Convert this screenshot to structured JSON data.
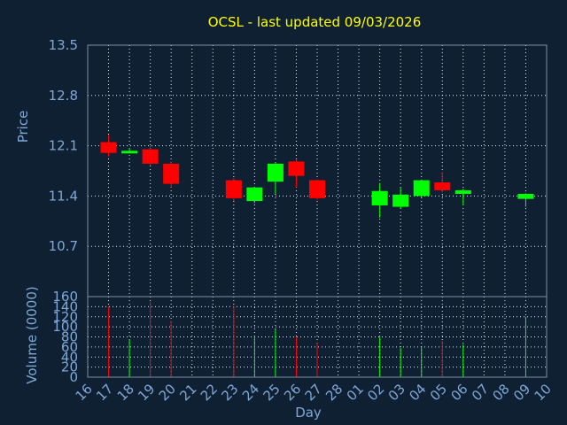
{
  "chart_data": [
    {
      "type": "candlestick",
      "title": "OCSL - last updated 09/03/2026",
      "ylabel": "Price",
      "ylim": [
        10.0,
        13.5
      ],
      "yticks": [
        "13.5",
        "12.8",
        "12.1",
        "11.4",
        "10.7"
      ],
      "up_color": "#00ff00",
      "down_color": "#ff0000",
      "candles": [
        {
          "day": "17",
          "open": 12.15,
          "close": 12.0,
          "high": 12.25,
          "low": 11.95
        },
        {
          "day": "18",
          "open": 12.0,
          "close": 12.03,
          "high": 12.07,
          "low": 11.99
        },
        {
          "day": "19",
          "open": 12.05,
          "close": 11.85,
          "high": 12.1,
          "low": 11.82
        },
        {
          "day": "20",
          "open": 11.85,
          "close": 11.57,
          "high": 11.88,
          "low": 11.52
        },
        {
          "day": "23",
          "open": 11.62,
          "close": 11.37,
          "high": 11.65,
          "low": 11.33
        },
        {
          "day": "24",
          "open": 11.33,
          "close": 11.52,
          "high": 11.53,
          "low": 11.3
        },
        {
          "day": "25",
          "open": 11.6,
          "close": 11.85,
          "high": 11.87,
          "low": 11.43
        },
        {
          "day": "26",
          "open": 11.88,
          "close": 11.68,
          "high": 11.9,
          "low": 11.52
        },
        {
          "day": "27",
          "open": 11.62,
          "close": 11.37,
          "high": 11.63,
          "low": 11.35
        },
        {
          "day": "02",
          "open": 11.27,
          "close": 11.47,
          "high": 11.58,
          "low": 11.1
        },
        {
          "day": "03",
          "open": 11.25,
          "close": 11.42,
          "high": 11.52,
          "low": 11.22
        },
        {
          "day": "04",
          "open": 11.4,
          "close": 11.62,
          "high": 11.63,
          "low": 11.38
        },
        {
          "day": "05",
          "open": 11.59,
          "close": 11.48,
          "high": 11.73,
          "low": 11.45
        },
        {
          "day": "06",
          "open": 11.43,
          "close": 11.48,
          "high": 11.5,
          "low": 11.27
        },
        {
          "day": "09",
          "open": 11.36,
          "close": 11.43,
          "high": 11.44,
          "low": 11.25
        }
      ]
    },
    {
      "type": "bar",
      "ylabel": "Volume (0000)",
      "xlabel": "Day",
      "ylim": [
        0,
        160
      ],
      "yticks": [
        "160",
        "140",
        "120",
        "100",
        "80",
        "60",
        "40",
        "20",
        "0"
      ],
      "categories": [
        "16",
        "17",
        "18",
        "19",
        "20",
        "21",
        "22",
        "23",
        "24",
        "25",
        "26",
        "27",
        "28",
        "01",
        "02",
        "03",
        "04",
        "05",
        "06",
        "07",
        "08",
        "09",
        "10"
      ],
      "volumes": [
        {
          "day": "17",
          "value": 140,
          "up": false
        },
        {
          "day": "18",
          "value": 75,
          "up": true
        },
        {
          "day": "19",
          "value": 150,
          "up": false
        },
        {
          "day": "20",
          "value": 112,
          "up": false
        },
        {
          "day": "23",
          "value": 142,
          "up": false
        },
        {
          "day": "24",
          "value": 82,
          "up": true
        },
        {
          "day": "25",
          "value": 95,
          "up": true
        },
        {
          "day": "26",
          "value": 80,
          "up": false
        },
        {
          "day": "27",
          "value": 68,
          "up": false
        },
        {
          "day": "02",
          "value": 80,
          "up": true
        },
        {
          "day": "03",
          "value": 58,
          "up": true
        },
        {
          "day": "04",
          "value": 60,
          "up": true
        },
        {
          "day": "05",
          "value": 72,
          "up": false
        },
        {
          "day": "06",
          "value": 65,
          "up": true
        },
        {
          "day": "09",
          "value": 120,
          "up": true
        }
      ]
    }
  ]
}
